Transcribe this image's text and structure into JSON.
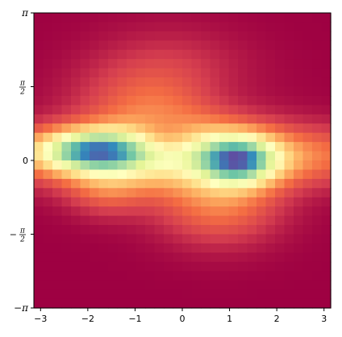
{
  "chart_data": {
    "type": "heatmap",
    "title": "",
    "xlabel": "",
    "ylabel": "",
    "xlim": [
      -3.14159,
      3.14159
    ],
    "ylim": [
      -3.14159,
      3.14159
    ],
    "grid": false,
    "colormap": "Spectral",
    "value_range": [
      0,
      1
    ],
    "resolution": [
      32,
      32
    ],
    "x_ticks": [
      {
        "value": -3,
        "label": "−3"
      },
      {
        "value": -2,
        "label": "−2"
      },
      {
        "value": -1,
        "label": "−1"
      },
      {
        "value": 0,
        "label": "0"
      },
      {
        "value": 1,
        "label": "1"
      },
      {
        "value": 2,
        "label": "2"
      },
      {
        "value": 3,
        "label": "3"
      }
    ],
    "y_ticks": [
      {
        "value": 3.14159,
        "label": "π"
      },
      {
        "value": 1.5708,
        "label": "π/2",
        "num": "π",
        "den": "2",
        "sign": ""
      },
      {
        "value": 0,
        "label": "0"
      },
      {
        "value": -1.5708,
        "label": "−π/2",
        "num": "π",
        "den": "2",
        "sign": "−"
      },
      {
        "value": -3.14159,
        "label": "−π"
      }
    ],
    "components": [
      {
        "x": -1.9,
        "y": 0.2,
        "sx": 0.8,
        "sy": 0.3,
        "amp": 1.0
      },
      {
        "x": 1.2,
        "y": 0.0,
        "sx": 0.55,
        "sy": 0.35,
        "amp": 0.95
      },
      {
        "x": -0.4,
        "y": 0.45,
        "sx": 0.5,
        "sy": 0.3,
        "amp": -0.3
      },
      {
        "x": 0.1,
        "y": 0.1,
        "sx": 3.0,
        "sy": 0.45,
        "amp": 0.55
      },
      {
        "x": -0.3,
        "y": 1.0,
        "sx": 1.2,
        "sy": 0.9,
        "amp": 0.45
      },
      {
        "x": 0.8,
        "y": -0.9,
        "sx": 0.9,
        "sy": 0.6,
        "amp": 0.35
      },
      {
        "x": -1.6,
        "y": -0.6,
        "sx": 0.6,
        "sy": 0.4,
        "amp": 0.25
      },
      {
        "x": 0.5,
        "y": 1.3,
        "sx": 0.9,
        "sy": 0.5,
        "amp": -0.15
      }
    ]
  }
}
